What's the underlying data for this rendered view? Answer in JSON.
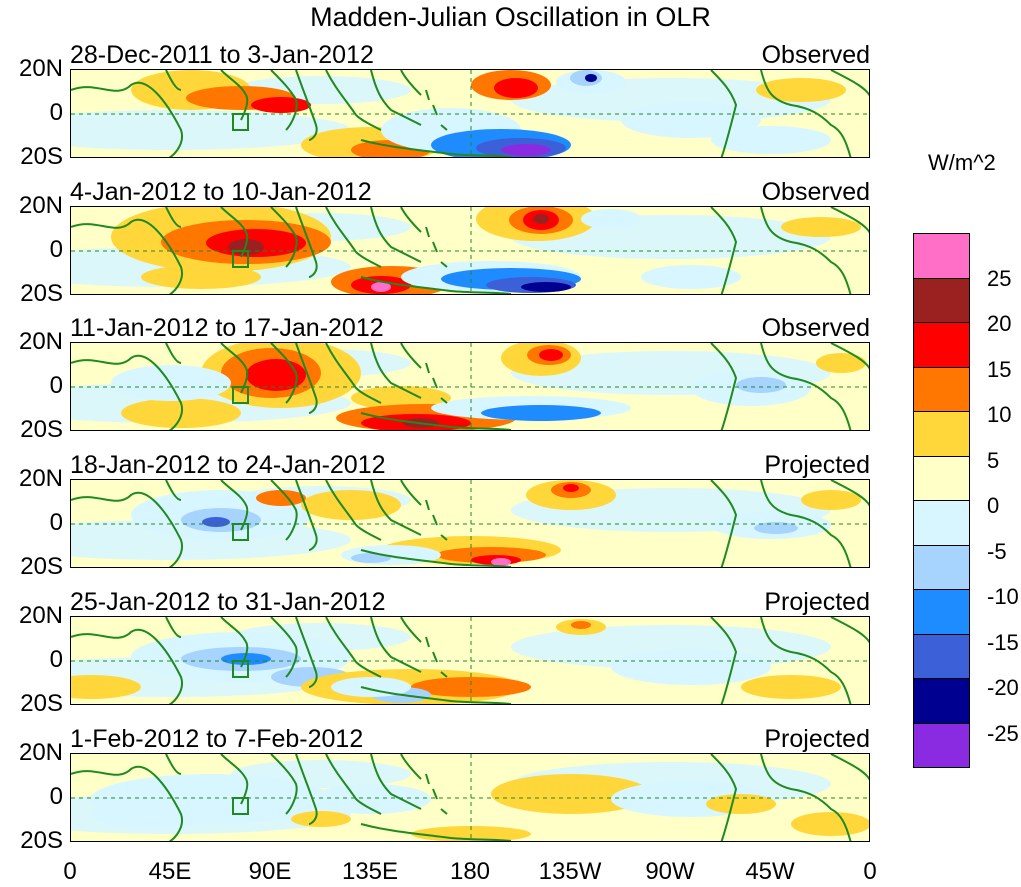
{
  "title": "Madden-Julian Oscillation in OLR",
  "units_label": "W/m^2",
  "lat_labels": [
    "20N",
    "0",
    "20S"
  ],
  "lon_labels": [
    "0",
    "45E",
    "90E",
    "135E",
    "180",
    "135W",
    "90W",
    "45W",
    "0"
  ],
  "panels": [
    {
      "dates": "28-Dec-2011 to 3-Jan-2012",
      "kind": "Observed"
    },
    {
      "dates": "4-Jan-2012 to 10-Jan-2012",
      "kind": "Observed"
    },
    {
      "dates": "11-Jan-2012 to 17-Jan-2012",
      "kind": "Observed"
    },
    {
      "dates": "18-Jan-2012 to 24-Jan-2012",
      "kind": "Projected"
    },
    {
      "dates": "25-Jan-2012 to 31-Jan-2012",
      "kind": "Projected"
    },
    {
      "dates": "1-Feb-2012 to 7-Feb-2012",
      "kind": "Projected"
    }
  ],
  "colorbar": {
    "colors": [
      "#ff6ec7",
      "#9b2020",
      "#ff0000",
      "#ff7700",
      "#ffd73a",
      "#ffffc8",
      "#d8f6ff",
      "#a6d4ff",
      "#1e8cff",
      "#3c60d8",
      "#000090",
      "#8a2be2"
    ],
    "ticks": [
      "25",
      "20",
      "15",
      "10",
      "5",
      "0",
      "-5",
      "-10",
      "-15",
      "-20",
      "-25"
    ]
  },
  "colors": {
    "land_outline": "#1f8a1f",
    "grid_line": "#1f8a1f",
    "frame": "#000000"
  }
}
